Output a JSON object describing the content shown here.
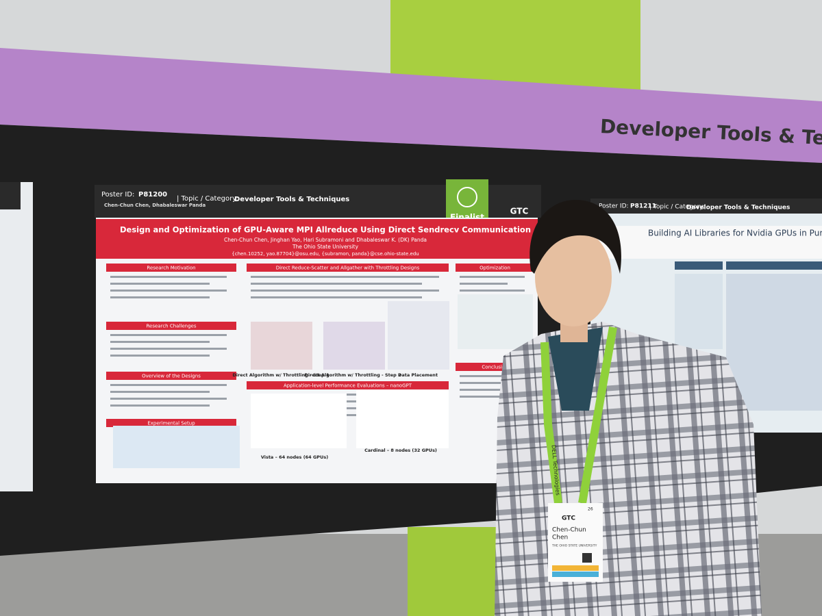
{
  "banner": {
    "title": "Developer Tools & Techni"
  },
  "poster_left": {
    "poster_id_label": "Poster ID:",
    "poster_id": "P81200",
    "topic_label": "| Topic / Category:",
    "topic": "Developer Tools & Techniques",
    "header_authors": "Chen-Chun Chen, Dhabaleswar Panda",
    "badge": "Finalist",
    "logo": "GTC",
    "title": "Design and Optimization of GPU-Aware MPI Allreduce Using Direct Sendrecv Communication",
    "authors": "Chen-Chun Chen, Jinghan Yao, Hari Subramoni and Dhabaleswar K. (DK) Panda",
    "affiliation": "The Ohio State University",
    "emails": "{chen.10252, yao.87704}@osu.edu, {subramon, panda}@cse.ohio-state.edu",
    "sections": [
      "Research Motivation",
      "Research Challenges",
      "Overview of the Designs",
      "Experimental Setup",
      "Direct Reduce-Scatter and Allgather with Throttling Designs",
      "Application-level Performance Evaluations – nanoGPT",
      "Optimization",
      "Conclusion"
    ],
    "captions": [
      "Direct Algorithm w/ Throttling - Step 1",
      "Direct Algorithm w/ Throttling - Step 2",
      "Data Placement",
      "Vista – 64 nodes (64 GPUs)",
      "Cardinal – 8 nodes (32 GPUs)"
    ]
  },
  "poster_right": {
    "poster_id_label": "Poster ID:",
    "poster_id": "P81211",
    "topic_label": "| Topic / Category:",
    "topic": "Developer Tools & Techniques",
    "title": "Building AI Libraries for Nvidia GPUs in Pure Modern Java with"
  },
  "name_badge": {
    "logo": "GTC",
    "name_line1": "Chen-Chun",
    "name_line2": "Chen",
    "org": "THE OHIO STATE UNIVERSITY",
    "number": "26"
  },
  "lanyard": "DELL Technologies"
}
